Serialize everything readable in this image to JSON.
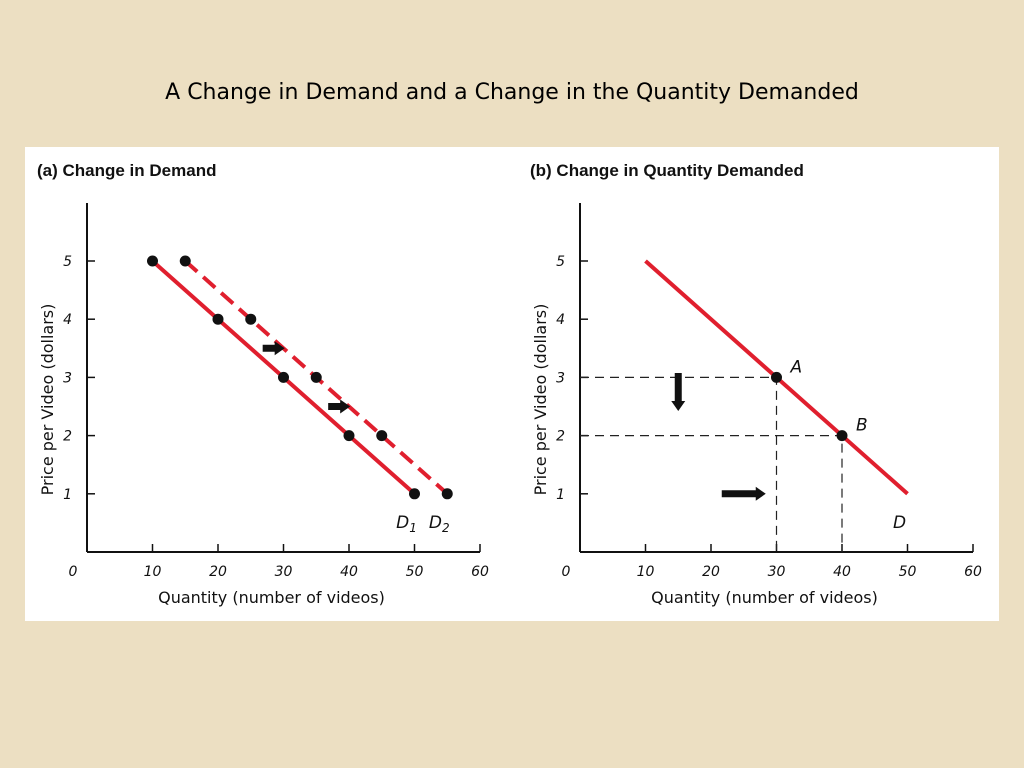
{
  "slide": {
    "title": "A Change in Demand and a Change in the Quantity Demanded"
  },
  "colors": {
    "curve": "#e01f2e",
    "points": "#111111",
    "background": "#ecdfc2",
    "panel": "#ffffff"
  },
  "chart_data": [
    {
      "type": "line",
      "title": "(a) Change in Demand",
      "xlabel": "Quantity (number of videos)",
      "ylabel": "Price per Video (dollars)",
      "xlim": [
        0,
        60
      ],
      "ylim": [
        0,
        6
      ],
      "x_ticks": [
        "0",
        "10",
        "20",
        "30",
        "40",
        "50",
        "60"
      ],
      "y_ticks": [
        "1",
        "2",
        "3",
        "4",
        "5"
      ],
      "series": [
        {
          "name": "D1",
          "label_main": "D",
          "label_sub": "1",
          "style": "solid",
          "points": [
            [
              10,
              5
            ],
            [
              20,
              4
            ],
            [
              30,
              3
            ],
            [
              40,
              2
            ],
            [
              50,
              1
            ]
          ]
        },
        {
          "name": "D2",
          "label_main": "D",
          "label_sub": "2",
          "style": "dashed",
          "points": [
            [
              15,
              5
            ],
            [
              25,
              4
            ],
            [
              35,
              3
            ],
            [
              45,
              2
            ],
            [
              55,
              1
            ]
          ]
        }
      ],
      "annotations": [
        {
          "type": "arrow",
          "direction": "right",
          "at": [
            28.5,
            3.5
          ]
        },
        {
          "type": "arrow",
          "direction": "right",
          "at": [
            38.5,
            2.5
          ]
        }
      ],
      "grid": false,
      "legend": "none"
    },
    {
      "type": "line",
      "title": "(b) Change in Quantity Demanded",
      "xlabel": "Quantity (number of videos)",
      "ylabel": "Price per Video (dollars)",
      "xlim": [
        0,
        60
      ],
      "ylim": [
        0,
        6
      ],
      "x_ticks": [
        "0",
        "10",
        "20",
        "30",
        "40",
        "50",
        "60"
      ],
      "y_ticks": [
        "1",
        "2",
        "3",
        "4",
        "5"
      ],
      "series": [
        {
          "name": "D",
          "label_main": "D",
          "label_sub": "",
          "style": "solid",
          "points": [
            [
              10,
              5
            ],
            [
              50,
              1
            ]
          ]
        }
      ],
      "marked_points": [
        {
          "label": "A",
          "x": 30,
          "y": 3
        },
        {
          "label": "B",
          "x": 40,
          "y": 2
        }
      ],
      "annotations": [
        {
          "type": "arrow",
          "direction": "down",
          "at": [
            15,
            2.75
          ]
        },
        {
          "type": "arrow",
          "direction": "right",
          "at": [
            25,
            1
          ]
        }
      ],
      "grid": false,
      "legend": "none"
    }
  ]
}
